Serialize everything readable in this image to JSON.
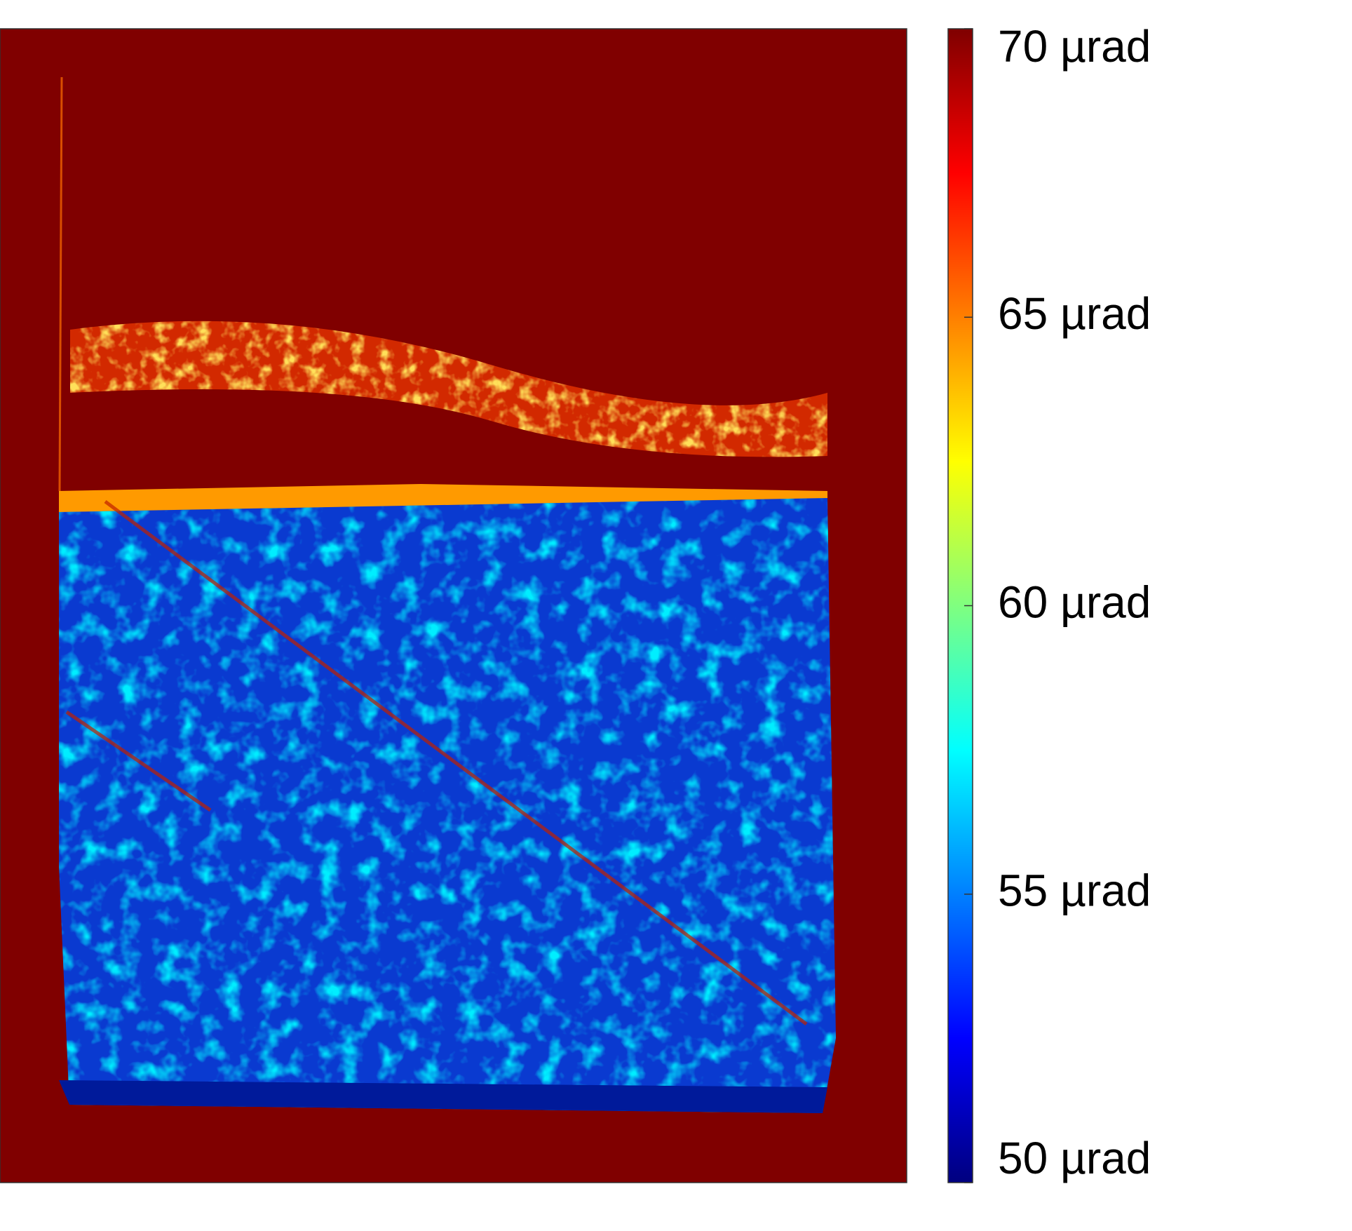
{
  "chart_data": {
    "type": "heatmap",
    "colormap": "jet",
    "colorbar": {
      "lim": [
        50,
        70
      ],
      "ticks": [
        {
          "value": 50,
          "label": "50 µrad"
        },
        {
          "value": 55,
          "label": "55 µrad"
        },
        {
          "value": 60,
          "label": "60 µrad"
        },
        {
          "value": 65,
          "label": "65 µrad"
        },
        {
          "value": 70,
          "label": "70 µrad"
        }
      ]
    }
  }
}
